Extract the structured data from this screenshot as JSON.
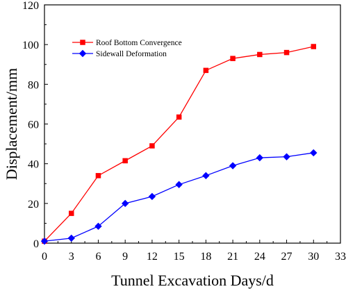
{
  "chart_data": {
    "type": "line",
    "xlabel": "Tunnel Excavation Days/d",
    "ylabel": "Displacement/mm",
    "xlim": [
      0,
      33
    ],
    "ylim": [
      0,
      120
    ],
    "xticks": [
      0,
      3,
      6,
      9,
      12,
      15,
      18,
      21,
      24,
      27,
      30,
      33
    ],
    "yticks": [
      0,
      20,
      40,
      60,
      80,
      100,
      120
    ],
    "grid": false,
    "legend_position": "top-left",
    "x": [
      0,
      3,
      6,
      9,
      12,
      15,
      18,
      21,
      24,
      27,
      30
    ],
    "series": [
      {
        "name": "Roof Bottom Convergence",
        "color": "#ff0000",
        "marker": "square",
        "values": [
          1,
          15,
          34,
          41.5,
          49,
          63.5,
          87,
          93,
          95,
          96,
          99
        ]
      },
      {
        "name": "Sidewall Deformation",
        "color": "#0000ff",
        "marker": "diamond",
        "values": [
          1,
          2.5,
          8.5,
          20,
          23.5,
          29.5,
          34,
          39,
          43,
          43.5,
          45.5
        ]
      }
    ]
  }
}
